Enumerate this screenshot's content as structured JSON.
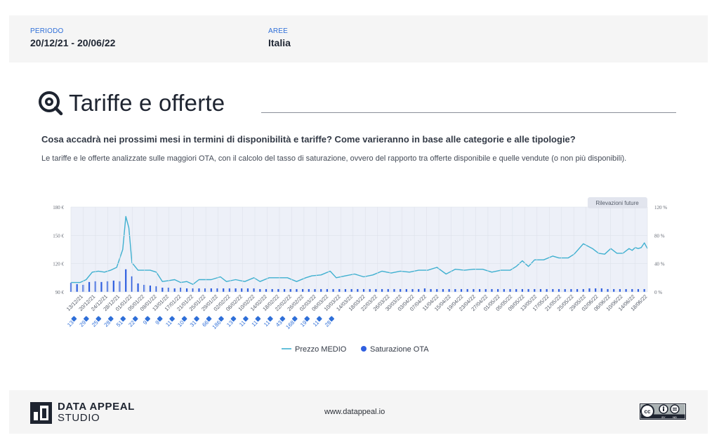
{
  "header": {
    "period_label": "PERIODO",
    "period_value": "20/12/21 - 20/06/22",
    "areas_label": "AREE",
    "areas_value": "Italia"
  },
  "section": {
    "title": "Tariffe e offerte",
    "question": "Cosa accadrà nei prossimi mesi in termini di disponibilità e tariffe? Come varieranno in base alle categorie e alle tipologie?",
    "description": "Le tariffe e le offerte analizzate sulle maggiori OTA, con il calcolo del tasso di saturazione, ovvero del rapporto tra offerte disponibile e quelle vendute (o non più disponibili)."
  },
  "footer": {
    "brand_line1": "DATA APPEAL",
    "brand_line2": "STUDIO",
    "website": "www.datappeal.io",
    "license": "CC BY ND"
  },
  "colors": {
    "price_line": "#3fb0d0",
    "saturation_bars": "#2f5fe0",
    "plot_bg": "#edf0f8",
    "accent_blue": "#2f6fd8"
  },
  "chart_data": {
    "type": "bar+line",
    "future_label": "Rilevazioni future",
    "y_left": {
      "ticks": [
        "180 €",
        "150 €",
        "120 €",
        "90 €"
      ],
      "ylim": [
        90,
        180
      ]
    },
    "y_right": {
      "ticks": [
        "120 %",
        "80 %",
        "40 %",
        "0 %"
      ],
      "ylim": [
        0,
        120
      ]
    },
    "x_labels": [
      "13/12/21",
      "20/12/21",
      "24/12/21",
      "28/12/21",
      "01/01/22",
      "05/01/22",
      "09/01/22",
      "13/01/22",
      "17/01/22",
      "21/01/22",
      "25/01/22",
      "29/01/22",
      "02/02/22",
      "06/02/22",
      "10/02/22",
      "14/02/22",
      "18/02/22",
      "22/02/22",
      "26/02/22",
      "02/03/22",
      "06/03/22",
      "10/03/22",
      "14/03/22",
      "18/03/22",
      "22/03/22",
      "26/03/22",
      "30/03/22",
      "03/04/22",
      "07/04/22",
      "11/04/22",
      "15/04/22",
      "19/04/22",
      "23/04/22",
      "27/04/22",
      "01/05/22",
      "05/05/22",
      "09/05/22",
      "13/05/22",
      "17/05/22",
      "21/05/22",
      "25/05/22",
      "29/05/22",
      "02/06/22",
      "06/06/22",
      "10/06/22",
      "14/06/22",
      "18/06/22"
    ],
    "link_labels": [
      "13",
      "29",
      "25",
      "28",
      "51",
      "22",
      "9",
      "9",
      "11",
      "10",
      "31",
      "66",
      "186",
      "13",
      "11",
      "11",
      "11",
      "43",
      "168",
      "19",
      "11",
      "28"
    ],
    "legend": [
      {
        "name": "Prezzo MEDIO",
        "kind": "line"
      },
      {
        "name": "Saturazione OTA",
        "kind": "dot"
      }
    ],
    "price_series": [
      {
        "x": "13/12/21",
        "y": 100
      },
      {
        "x": "16/12/21",
        "y": 100
      },
      {
        "x": "18/12/21",
        "y": 103
      },
      {
        "x": "20/12/21",
        "y": 111
      },
      {
        "x": "22/12/21",
        "y": 112
      },
      {
        "x": "24/12/21",
        "y": 111
      },
      {
        "x": "26/12/21",
        "y": 113
      },
      {
        "x": "28/12/21",
        "y": 116
      },
      {
        "x": "30/12/21",
        "y": 135
      },
      {
        "x": "31/12/21",
        "y": 170
      },
      {
        "x": "01/01/22",
        "y": 158
      },
      {
        "x": "02/01/22",
        "y": 121
      },
      {
        "x": "04/01/22",
        "y": 113
      },
      {
        "x": "06/01/22",
        "y": 113
      },
      {
        "x": "08/01/22",
        "y": 113
      },
      {
        "x": "10/01/22",
        "y": 111
      },
      {
        "x": "12/01/22",
        "y": 101
      },
      {
        "x": "14/01/22",
        "y": 102
      },
      {
        "x": "16/01/22",
        "y": 103
      },
      {
        "x": "18/01/22",
        "y": 100
      },
      {
        "x": "20/01/22",
        "y": 101
      },
      {
        "x": "22/01/22",
        "y": 98
      },
      {
        "x": "24/01/22",
        "y": 103
      },
      {
        "x": "28/01/22",
        "y": 103
      },
      {
        "x": "31/01/22",
        "y": 106
      },
      {
        "x": "02/02/22",
        "y": 101
      },
      {
        "x": "05/02/22",
        "y": 103
      },
      {
        "x": "08/02/22",
        "y": 101
      },
      {
        "x": "11/02/22",
        "y": 105
      },
      {
        "x": "13/02/22",
        "y": 101
      },
      {
        "x": "16/02/22",
        "y": 105
      },
      {
        "x": "19/02/22",
        "y": 105
      },
      {
        "x": "22/02/22",
        "y": 105
      },
      {
        "x": "25/02/22",
        "y": 101
      },
      {
        "x": "28/02/22",
        "y": 105
      },
      {
        "x": "02/03/22",
        "y": 107
      },
      {
        "x": "05/03/22",
        "y": 108
      },
      {
        "x": "08/03/22",
        "y": 112
      },
      {
        "x": "10/03/22",
        "y": 105
      },
      {
        "x": "13/03/22",
        "y": 107
      },
      {
        "x": "16/03/22",
        "y": 109
      },
      {
        "x": "19/03/22",
        "y": 106
      },
      {
        "x": "22/03/22",
        "y": 108
      },
      {
        "x": "25/03/22",
        "y": 112
      },
      {
        "x": "28/03/22",
        "y": 110
      },
      {
        "x": "31/03/22",
        "y": 112
      },
      {
        "x": "03/04/22",
        "y": 111
      },
      {
        "x": "06/04/22",
        "y": 113
      },
      {
        "x": "09/04/22",
        "y": 113
      },
      {
        "x": "12/04/22",
        "y": 116
      },
      {
        "x": "15/04/22",
        "y": 109
      },
      {
        "x": "18/04/22",
        "y": 114
      },
      {
        "x": "21/04/22",
        "y": 113
      },
      {
        "x": "24/04/22",
        "y": 114
      },
      {
        "x": "27/04/22",
        "y": 114
      },
      {
        "x": "30/04/22",
        "y": 111
      },
      {
        "x": "03/05/22",
        "y": 113
      },
      {
        "x": "06/05/22",
        "y": 113
      },
      {
        "x": "08/05/22",
        "y": 117
      },
      {
        "x": "10/05/22",
        "y": 123
      },
      {
        "x": "12/05/22",
        "y": 117
      },
      {
        "x": "14/05/22",
        "y": 124
      },
      {
        "x": "17/05/22",
        "y": 124
      },
      {
        "x": "20/05/22",
        "y": 128
      },
      {
        "x": "22/05/22",
        "y": 126
      },
      {
        "x": "25/05/22",
        "y": 126
      },
      {
        "x": "27/05/22",
        "y": 130
      },
      {
        "x": "30/05/22",
        "y": 141
      },
      {
        "x": "02/06/22",
        "y": 136
      },
      {
        "x": "04/06/22",
        "y": 131
      },
      {
        "x": "06/06/22",
        "y": 130
      },
      {
        "x": "08/06/22",
        "y": 136
      },
      {
        "x": "10/06/22",
        "y": 131
      },
      {
        "x": "12/06/22",
        "y": 131
      },
      {
        "x": "14/06/22",
        "y": 136
      },
      {
        "x": "15/06/22",
        "y": 134
      },
      {
        "x": "16/06/22",
        "y": 137
      },
      {
        "x": "17/06/22",
        "y": 136
      },
      {
        "x": "18/06/22",
        "y": 137
      },
      {
        "x": "19/06/22",
        "y": 142
      },
      {
        "x": "20/06/22",
        "y": 136
      }
    ],
    "saturation_bars": [
      {
        "x": "13/12/21",
        "y": 13
      },
      {
        "x": "15/12/21",
        "y": 11
      },
      {
        "x": "17/12/21",
        "y": 10
      },
      {
        "x": "19/12/21",
        "y": 14
      },
      {
        "x": "21/12/21",
        "y": 15
      },
      {
        "x": "23/12/21",
        "y": 14
      },
      {
        "x": "25/12/21",
        "y": 15
      },
      {
        "x": "27/12/21",
        "y": 16
      },
      {
        "x": "29/12/21",
        "y": 15
      },
      {
        "x": "31/12/21",
        "y": 32
      },
      {
        "x": "02/01/22",
        "y": 22
      },
      {
        "x": "04/01/22",
        "y": 12
      },
      {
        "x": "06/01/22",
        "y": 10
      },
      {
        "x": "08/01/22",
        "y": 9
      },
      {
        "x": "10/01/22",
        "y": 8
      },
      {
        "x": "12/01/22",
        "y": 6
      },
      {
        "x": "14/01/22",
        "y": 6
      },
      {
        "x": "16/01/22",
        "y": 5
      },
      {
        "x": "18/01/22",
        "y": 6
      },
      {
        "x": "20/01/22",
        "y": 5
      },
      {
        "x": "22/01/22",
        "y": 5
      },
      {
        "x": "24/01/22",
        "y": 5
      },
      {
        "x": "26/01/22",
        "y": 5
      },
      {
        "x": "28/01/22",
        "y": 5
      },
      {
        "x": "30/01/22",
        "y": 5
      },
      {
        "x": "01/02/22",
        "y": 5
      },
      {
        "x": "03/02/22",
        "y": 5
      },
      {
        "x": "05/02/22",
        "y": 5
      },
      {
        "x": "07/02/22",
        "y": 5
      },
      {
        "x": "09/02/22",
        "y": 5
      },
      {
        "x": "11/02/22",
        "y": 5
      },
      {
        "x": "13/02/22",
        "y": 4
      },
      {
        "x": "15/02/22",
        "y": 4
      },
      {
        "x": "17/02/22",
        "y": 4
      },
      {
        "x": "19/02/22",
        "y": 4
      },
      {
        "x": "21/02/22",
        "y": 4
      },
      {
        "x": "23/02/22",
        "y": 4
      },
      {
        "x": "25/02/22",
        "y": 4
      },
      {
        "x": "27/02/22",
        "y": 4
      },
      {
        "x": "01/03/22",
        "y": 4
      },
      {
        "x": "03/03/22",
        "y": 4
      },
      {
        "x": "05/03/22",
        "y": 4
      },
      {
        "x": "07/03/22",
        "y": 4
      },
      {
        "x": "09/03/22",
        "y": 4
      },
      {
        "x": "11/03/22",
        "y": 4
      },
      {
        "x": "13/03/22",
        "y": 4
      },
      {
        "x": "15/03/22",
        "y": 4
      },
      {
        "x": "17/03/22",
        "y": 4
      },
      {
        "x": "19/03/22",
        "y": 4
      },
      {
        "x": "21/03/22",
        "y": 4
      },
      {
        "x": "23/03/22",
        "y": 4
      },
      {
        "x": "25/03/22",
        "y": 4
      },
      {
        "x": "27/03/22",
        "y": 4
      },
      {
        "x": "29/03/22",
        "y": 4
      },
      {
        "x": "31/03/22",
        "y": 4
      },
      {
        "x": "02/04/22",
        "y": 4
      },
      {
        "x": "04/04/22",
        "y": 4
      },
      {
        "x": "06/04/22",
        "y": 4
      },
      {
        "x": "08/04/22",
        "y": 5
      },
      {
        "x": "10/04/22",
        "y": 4
      },
      {
        "x": "12/04/22",
        "y": 4
      },
      {
        "x": "14/04/22",
        "y": 4
      },
      {
        "x": "16/04/22",
        "y": 4
      },
      {
        "x": "18/04/22",
        "y": 4
      },
      {
        "x": "20/04/22",
        "y": 4
      },
      {
        "x": "22/04/22",
        "y": 4
      },
      {
        "x": "24/04/22",
        "y": 4
      },
      {
        "x": "26/04/22",
        "y": 4
      },
      {
        "x": "28/04/22",
        "y": 4
      },
      {
        "x": "30/04/22",
        "y": 4
      },
      {
        "x": "02/05/22",
        "y": 4
      },
      {
        "x": "04/05/22",
        "y": 4
      },
      {
        "x": "06/05/22",
        "y": 4
      },
      {
        "x": "08/05/22",
        "y": 4
      },
      {
        "x": "10/05/22",
        "y": 4
      },
      {
        "x": "12/05/22",
        "y": 4
      },
      {
        "x": "14/05/22",
        "y": 4
      },
      {
        "x": "16/05/22",
        "y": 4
      },
      {
        "x": "18/05/22",
        "y": 4
      },
      {
        "x": "20/05/22",
        "y": 4
      },
      {
        "x": "22/05/22",
        "y": 4
      },
      {
        "x": "24/05/22",
        "y": 4
      },
      {
        "x": "26/05/22",
        "y": 4
      },
      {
        "x": "28/05/22",
        "y": 4
      },
      {
        "x": "30/05/22",
        "y": 4
      },
      {
        "x": "01/06/22",
        "y": 5
      },
      {
        "x": "03/06/22",
        "y": 5
      },
      {
        "x": "05/06/22",
        "y": 5
      },
      {
        "x": "07/06/22",
        "y": 4
      },
      {
        "x": "09/06/22",
        "y": 4
      },
      {
        "x": "11/06/22",
        "y": 4
      },
      {
        "x": "13/06/22",
        "y": 4
      },
      {
        "x": "15/06/22",
        "y": 4
      },
      {
        "x": "17/06/22",
        "y": 4
      },
      {
        "x": "19/06/22",
        "y": 4
      }
    ]
  }
}
